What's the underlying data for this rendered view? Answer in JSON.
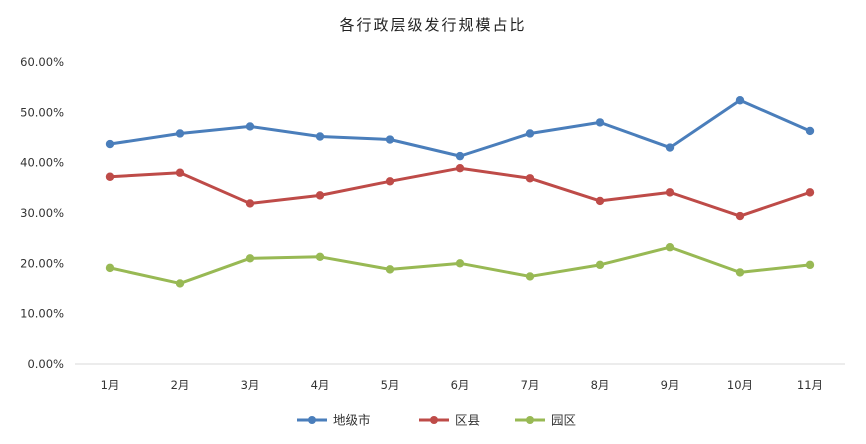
{
  "chart_data": {
    "type": "line",
    "title": "各行政层级发行规模占比",
    "categories": [
      "1月",
      "2月",
      "3月",
      "4月",
      "5月",
      "6月",
      "7月",
      "8月",
      "9月",
      "10月",
      "11月"
    ],
    "ylim": [
      0,
      60
    ],
    "yticks": [
      "0.00%",
      "10.00%",
      "20.00%",
      "30.00%",
      "40.00%",
      "50.00%",
      "60.00%"
    ],
    "grid": false,
    "legend_position": "bottom",
    "series": [
      {
        "name": "地级市",
        "color": "#4A7EBB",
        "values": [
          43.7,
          45.8,
          47.2,
          45.2,
          44.6,
          41.3,
          45.8,
          48.0,
          43.0,
          52.4,
          46.3
        ]
      },
      {
        "name": "区县",
        "color": "#BE4B48",
        "values": [
          37.2,
          38.0,
          31.9,
          33.5,
          36.3,
          38.9,
          36.9,
          32.4,
          34.1,
          29.4,
          34.1
        ]
      },
      {
        "name": "园区",
        "color": "#98B954",
        "values": [
          19.1,
          16.0,
          21.0,
          21.3,
          18.8,
          20.0,
          17.4,
          19.7,
          23.2,
          18.2,
          19.7
        ]
      }
    ]
  }
}
